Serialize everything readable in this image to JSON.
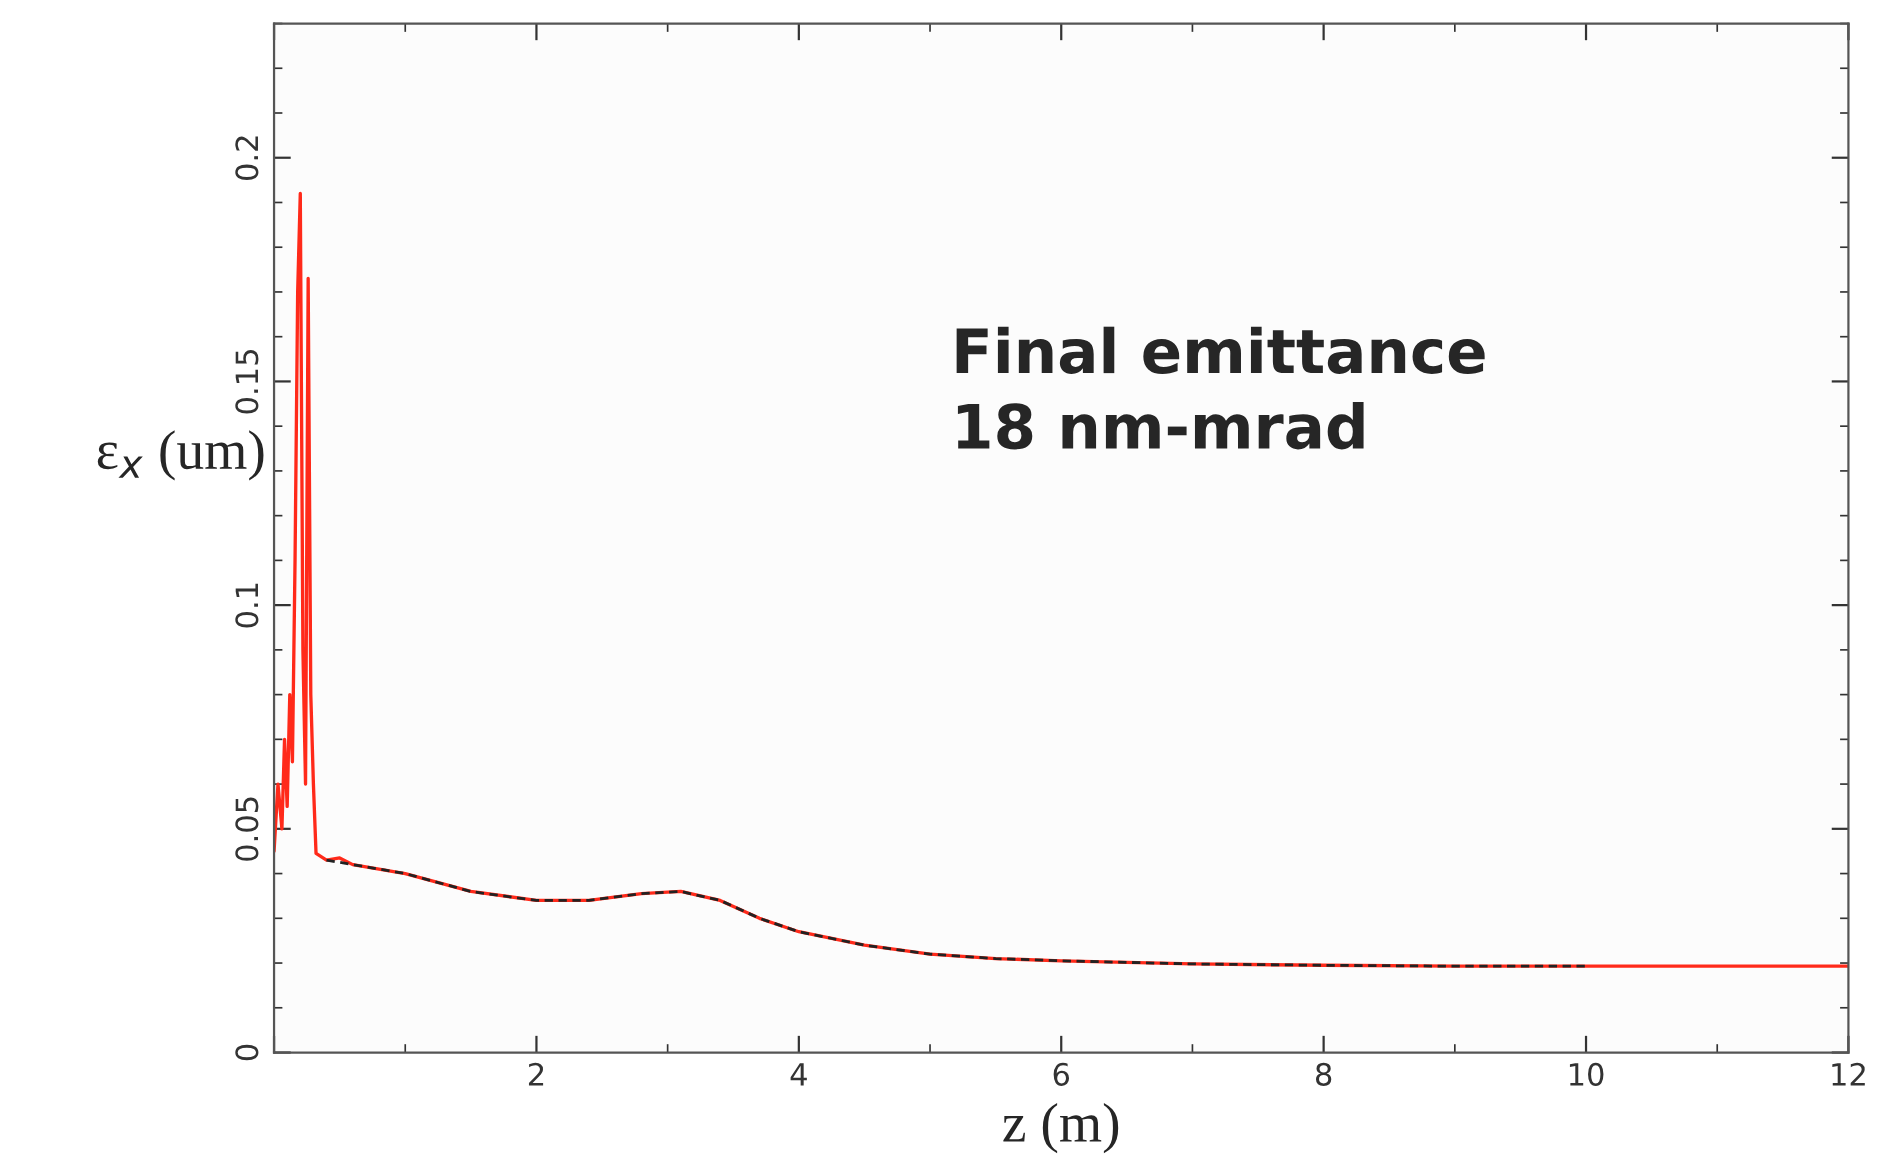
{
  "chart_data": {
    "type": "line",
    "xlabel": "z (m)",
    "ylabel": "ε$_{x}$ (um)",
    "annotations": [
      "Final emittance\n18 nm-mrad"
    ],
    "xlim": [
      0,
      12
    ],
    "xticks": [
      {
        "value": 0,
        "label": null
      },
      2,
      4,
      6,
      8,
      10,
      12
    ],
    "ylim": [
      0,
      0.23
    ],
    "yticks": [
      0,
      0.05,
      0.1,
      0.15,
      0.2
    ],
    "grid": false,
    "legend": false,
    "series": [
      {
        "color": "#ff2a1a",
        "line_style": "solid",
        "x": [
          0,
          0.03,
          0.06,
          0.08,
          0.1,
          0.12,
          0.14,
          0.16,
          0.18,
          0.2,
          0.22,
          0.24,
          0.26,
          0.28,
          0.3,
          0.32,
          0.4,
          0.5,
          0.6,
          1.0,
          1.5,
          2.0,
          2.4,
          2.8,
          3.1,
          3.4,
          3.7,
          4.0,
          4.5,
          5.0,
          5.5,
          6.0,
          7.0,
          8.0,
          9.0,
          10.0,
          11.0,
          12.0
        ],
        "values": [
          0.045,
          0.06,
          0.05,
          0.07,
          0.055,
          0.08,
          0.065,
          0.11,
          0.17,
          0.192,
          0.09,
          0.06,
          0.173,
          0.08,
          0.06,
          0.0445,
          0.043,
          0.0435,
          0.042,
          0.04,
          0.036,
          0.034,
          0.034,
          0.0355,
          0.036,
          0.034,
          0.03,
          0.027,
          0.024,
          0.022,
          0.021,
          0.0205,
          0.0198,
          0.0195,
          0.0193,
          0.0193,
          0.0193,
          0.0193
        ]
      },
      {
        "color": "#222222",
        "line_style": "dashed",
        "x": [
          0.4,
          0.6,
          1.0,
          1.5,
          2.0,
          2.4,
          2.8,
          3.1,
          3.4,
          3.7,
          4.0,
          4.5,
          5.0,
          5.5,
          6.0,
          7.0,
          8.0,
          9.0,
          10.0
        ],
        "values": [
          0.043,
          0.042,
          0.04,
          0.036,
          0.034,
          0.034,
          0.0355,
          0.036,
          0.034,
          0.03,
          0.027,
          0.024,
          0.022,
          0.021,
          0.0205,
          0.0198,
          0.0195,
          0.0193,
          0.0193
        ]
      }
    ]
  }
}
